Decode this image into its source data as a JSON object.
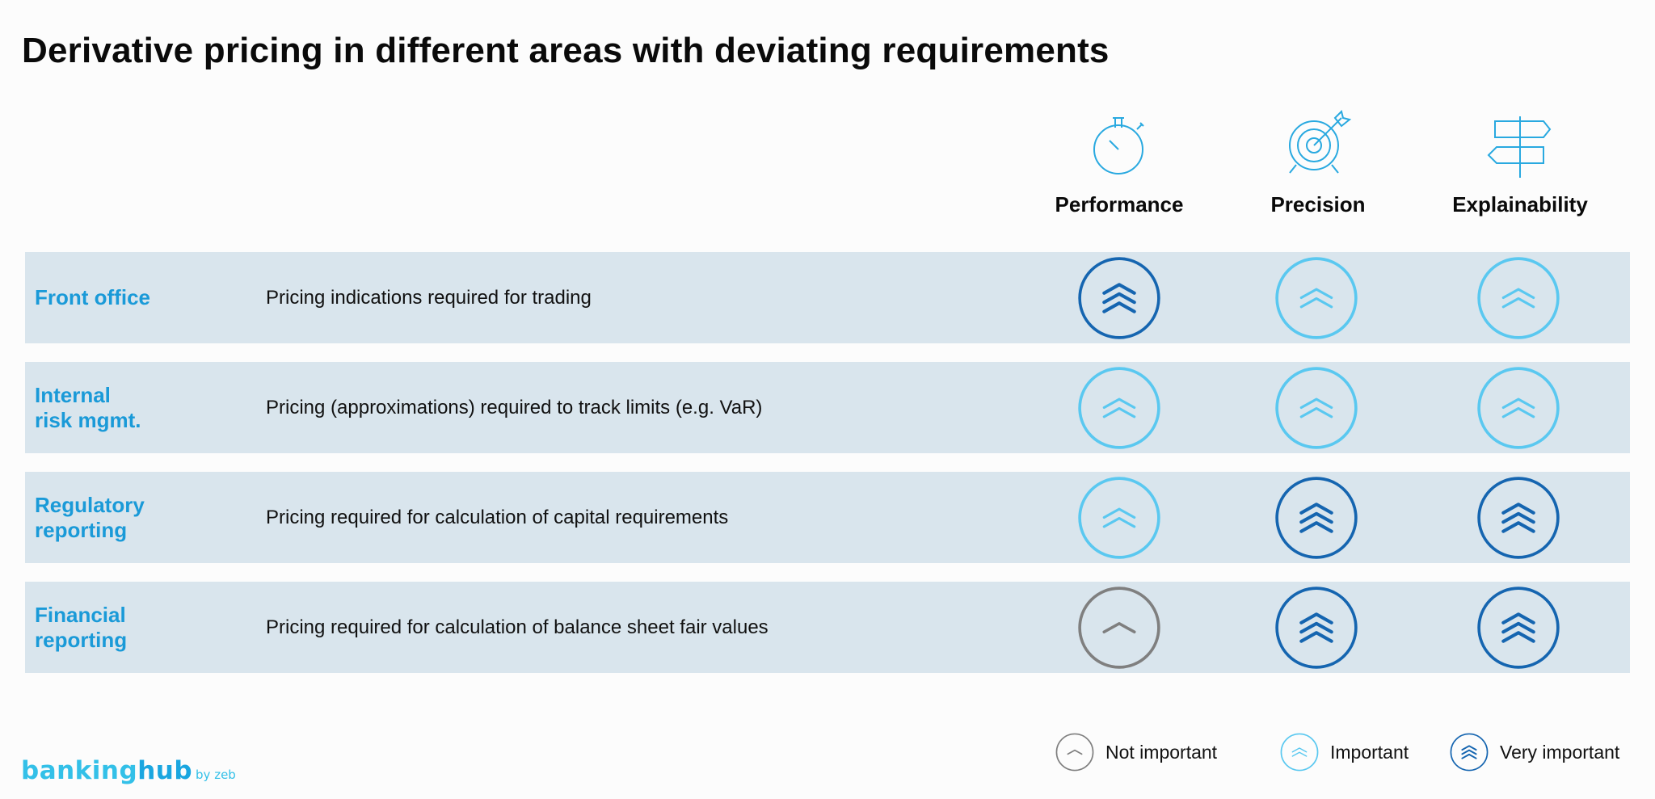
{
  "title": "Derivative pricing in different areas with deviating requirements",
  "columns": [
    {
      "label": "Performance",
      "icon": "stopwatch-icon"
    },
    {
      "label": "Precision",
      "icon": "target-icon"
    },
    {
      "label": "Explainability",
      "icon": "signpost-icon"
    }
  ],
  "rows": [
    {
      "area": "Front office",
      "description": "Pricing indications required for trading",
      "ratings": [
        "very-important",
        "important",
        "important"
      ]
    },
    {
      "area": "Internal\nrisk mgmt.",
      "description": "Pricing (approximations) required to track limits (e.g. VaR)",
      "ratings": [
        "important",
        "important",
        "important"
      ]
    },
    {
      "area": "Regulatory\nreporting",
      "description": "Pricing required for calculation of capital requirements",
      "ratings": [
        "important",
        "very-important",
        "very-important"
      ]
    },
    {
      "area": "Financial\nreporting",
      "description": "Pricing required for calculation of balance sheet fair values",
      "ratings": [
        "not-important",
        "very-important",
        "very-important"
      ]
    }
  ],
  "legend": {
    "not_important": "Not important",
    "important": "Important",
    "very_important": "Very important"
  },
  "brand": {
    "main_a": "banking",
    "main_b": "hub",
    "sub": "by zeb"
  },
  "colors": {
    "very_important": "#1565b0",
    "important": "#5ac8f0",
    "not_important": "#7f7f7f",
    "row_background": "#d9e5ed",
    "area_text": "#1a9ad8",
    "icon_line": "#29a9e0"
  }
}
